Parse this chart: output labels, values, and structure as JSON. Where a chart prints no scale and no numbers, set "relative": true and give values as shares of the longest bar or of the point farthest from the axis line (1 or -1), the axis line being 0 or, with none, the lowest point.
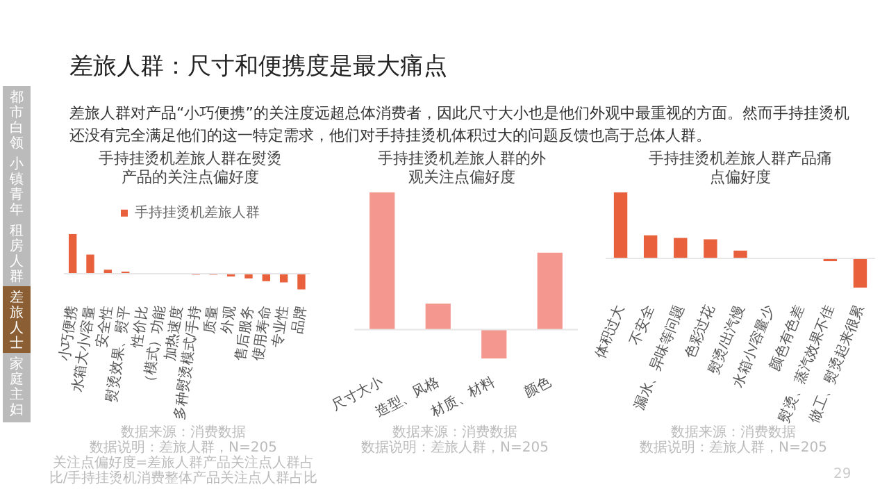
{
  "chart_data": [
    {
      "type": "other",
      "title": "差旅人群：尺寸和便携度是最大痛点",
      "annotations": [
        "差旅人群对产品“小巧便携”的关注度远超总体消费者，因此尺寸大小也是他们外观中最重视的方面。然而手持挂烫机还没有完全满足他们的这一特定需求，他们对手持挂烫机体积过大的问题反馈也高于总体人群。",
        "都市白领",
        "小镇青年",
        "租房人群",
        "差旅人士",
        "家庭主妇",
        "29"
      ]
    },
    {
      "type": "bar",
      "relative": true,
      "title": "手持挂烫机差旅人群在熨烫产品的关注点偏好度",
      "categories": [
        "小巧便携",
        "水箱大小/容量",
        "安全性",
        "熨烫效果、熨平",
        "性价比",
        "（模式）功能",
        "加热速度",
        "多种熨烫模式/手持",
        "质量",
        "外观",
        "售后服务",
        "使用寿命",
        "专业性",
        "品牌"
      ],
      "series": [
        {
          "name": "手持挂烫机差旅人群",
          "color": "#e8603c",
          "values": [
            1,
            0.48,
            0.1,
            0.05,
            0,
            0,
            0,
            -0.03,
            -0.03,
            -0.07,
            -0.12,
            -0.19,
            -0.22,
            -0.4
          ]
        }
      ],
      "legend": "top",
      "annotations": [
        "数据来源：消费数据",
        "数据说明：差旅人群，N=205",
        "关注点偏好度=差旅人群产品关注点人群占比/手持挂烫机消费整体产品关注点人群占比"
      ]
    },
    {
      "type": "bar",
      "relative": true,
      "title": "手持挂烫机差旅人群的外观关注点偏好度",
      "categories": [
        "尺寸大小",
        "造型、风格",
        "材质、材料",
        "颜色"
      ],
      "series": [
        {
          "color": "#f4978e",
          "values": [
            1,
            0.19,
            -0.21,
            0.56
          ]
        }
      ],
      "annotations": [
        "数据来源：消费数据",
        "数据说明：差旅人群，N=205"
      ]
    },
    {
      "type": "bar",
      "relative": true,
      "title": "手持挂烫机差旅人群产品痛点偏好度",
      "categories": [
        "体积过大",
        "不安全",
        "漏水、异味等问题",
        "色彩过花",
        "熨烫/出汽慢",
        "水箱小/容量少",
        "颜色有色差",
        "熨烫、蒸汽效果不佳",
        "做工、熨烫起来很累"
      ],
      "series": [
        {
          "color": "#e8603c",
          "values": [
            1,
            0.35,
            0.31,
            0.29,
            0.12,
            0,
            0,
            -0.04,
            -0.44
          ]
        }
      ],
      "annotations": [
        "数据来源：消费数据",
        "数据说明：差旅人群，N=205"
      ]
    }
  ]
}
